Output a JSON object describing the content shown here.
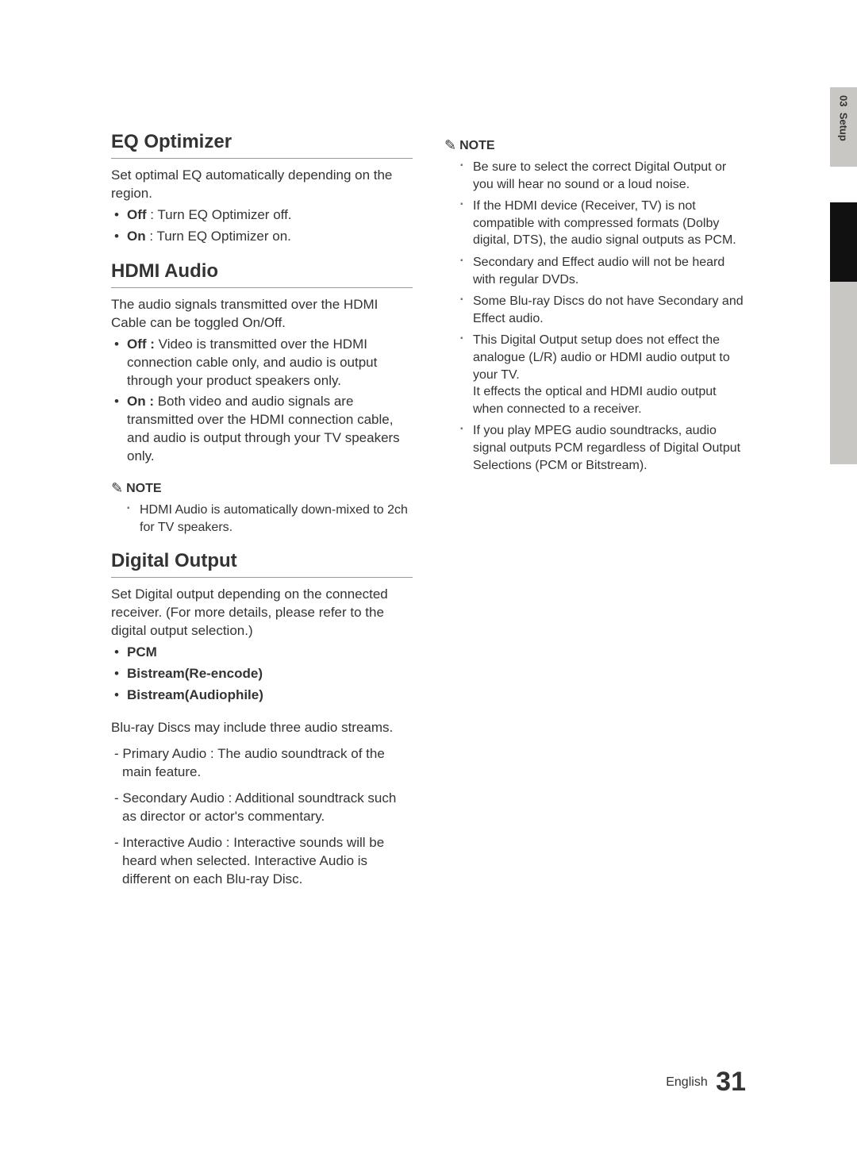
{
  "sidetab": {
    "chapter": "03",
    "label": "Setup"
  },
  "footer": {
    "lang": "English",
    "page": "31"
  },
  "left": {
    "eq": {
      "title": "EQ Optimizer",
      "intro": "Set optimal EQ automatically depending on the region.",
      "off_label": "Off",
      "off_text": " : Turn EQ Optimizer off.",
      "on_label": "On",
      "on_text": " : Turn EQ Optimizer on."
    },
    "hdmi": {
      "title": "HDMI Audio",
      "intro": "The audio signals transmitted over the HDMI Cable can be toggled On/Off.",
      "off_label": "Off :",
      "off_text": " Video is transmitted over the HDMI connection cable only, and audio is output through your product speakers only.",
      "on_label": "On :",
      "on_text": " Both video and audio signals are transmitted over the HDMI connection cable, and audio is output through your TV speakers only.",
      "note_label": "NOTE",
      "note1": "HDMI Audio is automatically down-mixed to 2ch for TV speakers."
    },
    "digital": {
      "title": "Digital Output",
      "intro": "Set Digital output depending on the connected receiver. (For more details, please refer to the digital output selection.)",
      "opt1": "PCM",
      "opt2": "Bistream(Re-encode)",
      "opt3": "Bistream(Audiophile)",
      "streams_intro": "Blu-ray Discs may include three audio streams.",
      "s1": "- Primary Audio : The audio soundtrack of the main feature.",
      "s2": "- Secondary Audio : Additional soundtrack such as director or actor's commentary.",
      "s3": "- Interactive Audio : Interactive sounds will be heard when selected. Interactive Audio is different on each Blu-ray Disc."
    }
  },
  "right": {
    "note_label": "NOTE",
    "n1": "Be sure to select the correct Digital Output or you will hear no sound or a loud noise.",
    "n2": "If the HDMI device (Receiver, TV) is not compatible with compressed formats (Dolby digital, DTS), the audio signal outputs as PCM.",
    "n3": "Secondary and Effect audio will not be heard with regular DVDs.",
    "n4": "Some Blu-ray Discs do not have Secondary and Effect audio.",
    "n5a": "This Digital Output setup does not effect the analogue (L/R) audio or HDMI audio output to your TV.",
    "n5b": "It effects the optical and HDMI audio output when connected to a receiver.",
    "n6": "If you play MPEG audio soundtracks, audio signal outputs PCM regardless of Digital Output Selections (PCM or Bitstream)."
  }
}
